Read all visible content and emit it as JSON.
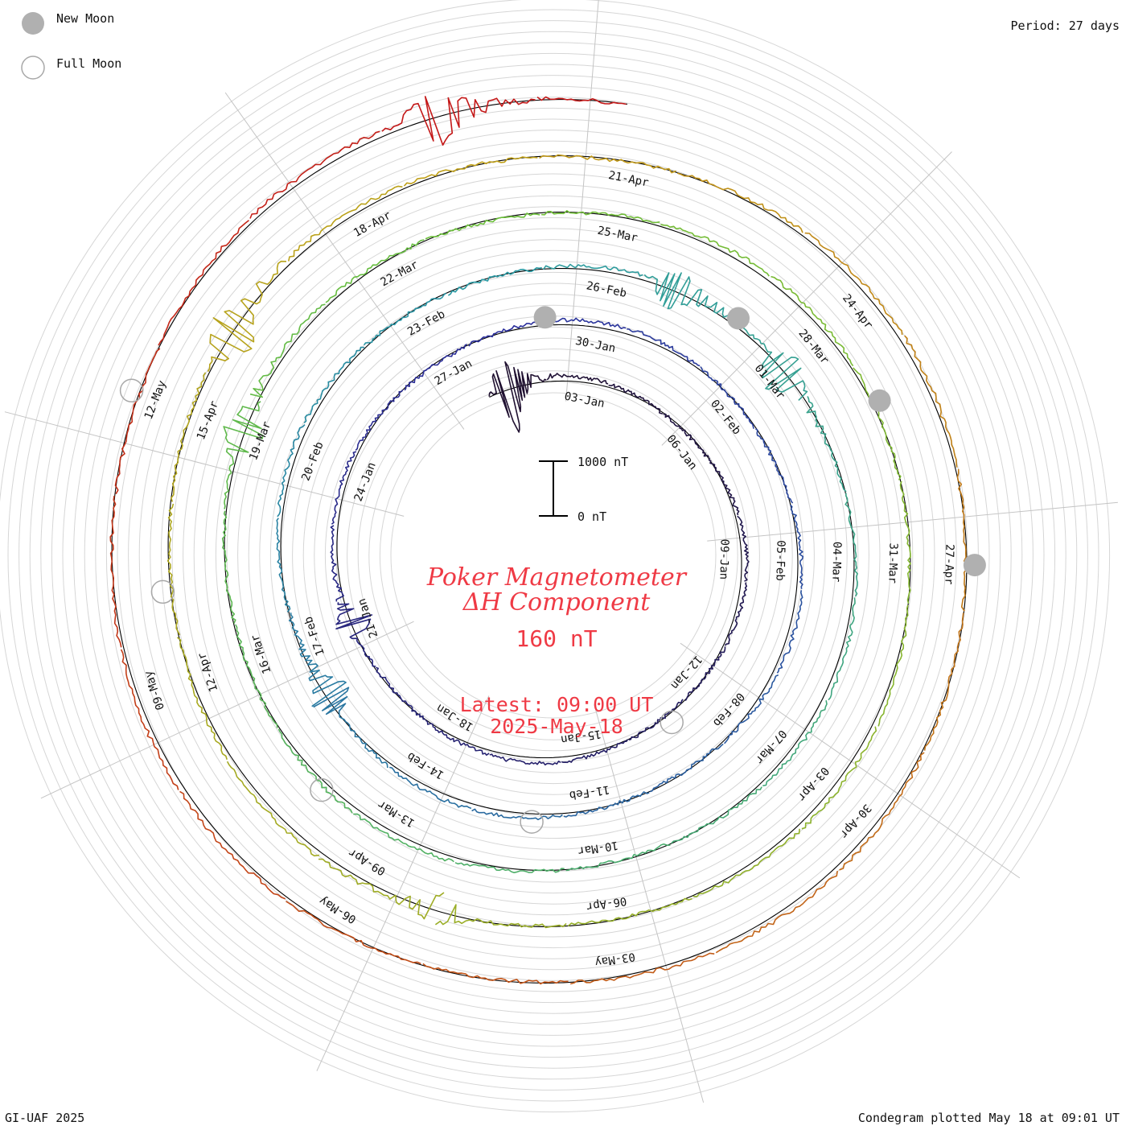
{
  "legend": {
    "new_moon_label": "New Moon",
    "full_moon_label": "Full Moon",
    "new_moon_color": "#b0b0b0",
    "full_moon_color": "#a8a8a8"
  },
  "header": {
    "period_text": "Period: 27 days"
  },
  "footer": {
    "credit": "GI-UAF 2025",
    "plotted": "Condegram plotted May 18 at 09:01 UT"
  },
  "center": {
    "title_line1": "Poker Magnetometer",
    "title_line2": "ΔH Component",
    "value": "160 nT",
    "latest_line1": "Latest: 09:00 UT",
    "latest_line2": "2025-May-18"
  },
  "chart_data": {
    "type": "line",
    "subtype": "condegram (spiral, one turn per period)",
    "period_days": 27,
    "scale_bar": {
      "top_label": "1000 nT",
      "bottom_label": "0 nT",
      "top_value_nT": 1000,
      "bottom_value_nT": 0
    },
    "date_labels": [
      "03-Jan",
      "06-Jan",
      "09-Jan",
      "12-Jan",
      "15-Jan",
      "18-Jan",
      "21-Jan",
      "24-Jan",
      "27-Jan",
      "30-Jan",
      "02-Feb",
      "05-Feb",
      "08-Feb",
      "11-Feb",
      "14-Feb",
      "17-Feb",
      "20-Feb",
      "23-Feb",
      "26-Feb",
      "01-Mar",
      "04-Mar",
      "07-Mar",
      "10-Mar",
      "13-Mar",
      "16-Mar",
      "19-Mar",
      "22-Mar",
      "25-Mar",
      "28-Mar",
      "31-Mar",
      "03-Apr",
      "06-Apr",
      "09-Apr",
      "12-Apr",
      "15-Apr",
      "18-Apr",
      "21-Apr",
      "24-Apr",
      "27-Apr",
      "30-Apr",
      "03-May",
      "06-May",
      "09-May",
      "12-May"
    ],
    "rotations": [
      {
        "start": "01-Jan",
        "end": "27-Jan",
        "color": "#1f1030"
      },
      {
        "start": "28-Jan",
        "end": "23-Feb",
        "color": "#2b2f9c"
      },
      {
        "start": "24-Feb",
        "end": "22-Mar",
        "color": "#2a9aa4"
      },
      {
        "start": "23-Mar",
        "end": "18-Apr",
        "color": "#6bbf3a"
      },
      {
        "start": "19-Apr",
        "end": "15-May",
        "color": "#c0a018"
      },
      {
        "start": "16-May",
        "end": "18-May",
        "color": "#c41818"
      }
    ],
    "new_moons": [
      "29-Jan",
      "28-Feb",
      "29-Mar",
      "27-Apr"
    ],
    "full_moons": [
      "13-Jan",
      "12-Feb",
      "14-Mar",
      "13-Apr",
      "12-May"
    ],
    "events": [
      {
        "date": "01-Jan",
        "peak_nT": 900,
        "note": "large disturbance at start of spiral"
      },
      {
        "date": "21-Jan",
        "peak_nT": 450
      },
      {
        "date": "16-Feb",
        "peak_nT": 500
      },
      {
        "date": "27-Feb",
        "peak_nT": 500
      },
      {
        "date": "01-Mar",
        "peak_nT": 550
      },
      {
        "date": "19-Mar",
        "peak_nT": 500
      },
      {
        "date": "08-Apr",
        "peak_nT": 350
      },
      {
        "date": "16-Apr",
        "peak_nT": 600
      },
      {
        "date": "16-May",
        "peak_nT": 600
      }
    ],
    "grid": true
  }
}
